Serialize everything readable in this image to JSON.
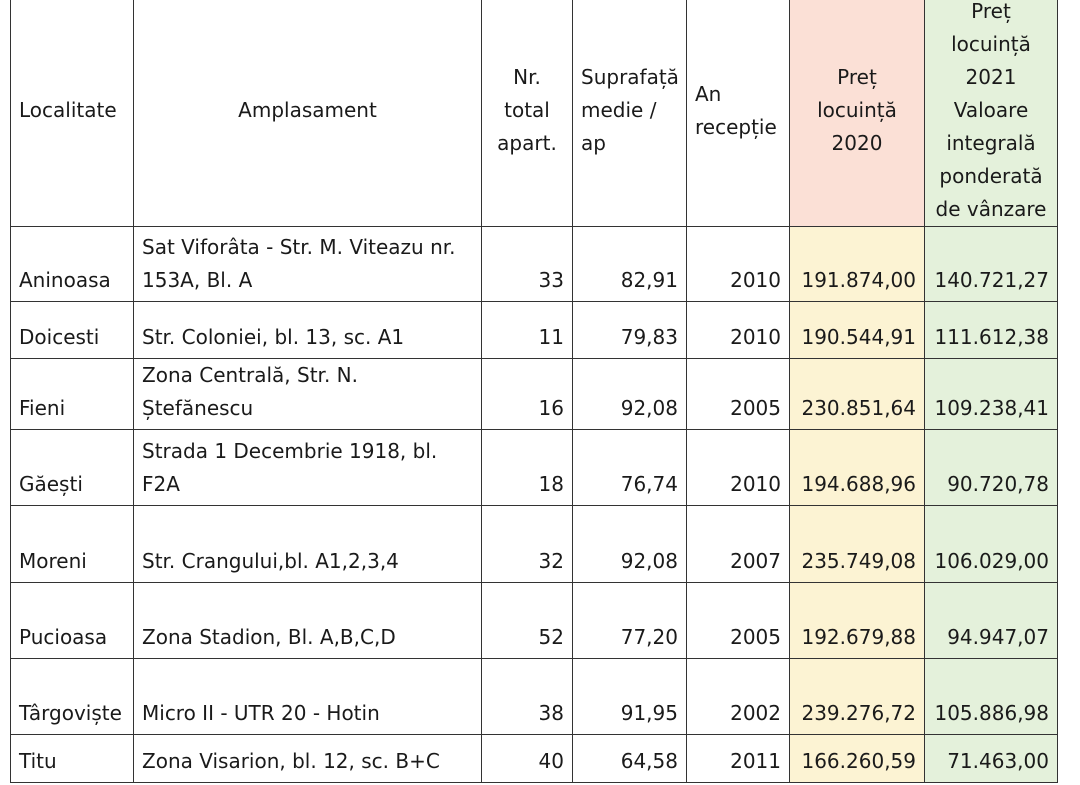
{
  "headers": {
    "localitate": "Localitate",
    "amplasament": "Amplasament",
    "nr_total": "Nr. total apart.",
    "suprafata": "Suprafață medie / ap",
    "an_receptie": "An recepție",
    "pret_2020": "Preț locuință 2020",
    "pret_2021": "Preț locuință 2021 Valoare integrală ponderată de vânzare"
  },
  "rows": [
    {
      "localitate": "Aninoasa",
      "amplasament": "Sat Viforâta - Str. M. Viteazu nr. 153A, Bl. A",
      "nr": "33",
      "suprafata": "82,91",
      "an": "2010",
      "pret2020": "191.874,00",
      "pret2021": "140.721,27"
    },
    {
      "localitate": "Doicesti",
      "amplasament": "Str. Coloniei, bl. 13, sc. A1",
      "nr": "11",
      "suprafata": "79,83",
      "an": "2010",
      "pret2020": "190.544,91",
      "pret2021": "111.612,38"
    },
    {
      "localitate": "Fieni",
      "amplasament": "Zona Centrală, Str. N. Ștefănescu",
      "nr": "16",
      "suprafata": "92,08",
      "an": "2005",
      "pret2020": "230.851,64",
      "pret2021": "109.238,41"
    },
    {
      "localitate": "Găești",
      "amplasament": "Strada 1 Decembrie 1918, bl. F2A",
      "nr": "18",
      "suprafata": "76,74",
      "an": "2010",
      "pret2020": "194.688,96",
      "pret2021": "90.720,78"
    },
    {
      "localitate": "Moreni",
      "amplasament": "Str. Crangului,bl. A1,2,3,4",
      "nr": "32",
      "suprafata": "92,08",
      "an": "2007",
      "pret2020": "235.749,08",
      "pret2021": "106.029,00"
    },
    {
      "localitate": "Pucioasa",
      "amplasament": "Zona Stadion, Bl. A,B,C,D",
      "nr": "52",
      "suprafata": "77,20",
      "an": "2005",
      "pret2020": "192.679,88",
      "pret2021": "94.947,07"
    },
    {
      "localitate": "Târgoviște",
      "amplasament": "Micro II - UTR 20 - Hotin",
      "nr": "38",
      "suprafata": "91,95",
      "an": "2002",
      "pret2020": "239.276,72",
      "pret2021": "105.886,98"
    },
    {
      "localitate": "Titu",
      "amplasament": "Zona Visarion, bl. 12, sc. B+C",
      "nr": "40",
      "suprafata": "64,58",
      "an": "2011",
      "pret2020": "166.260,59",
      "pret2021": "71.463,00"
    }
  ]
}
